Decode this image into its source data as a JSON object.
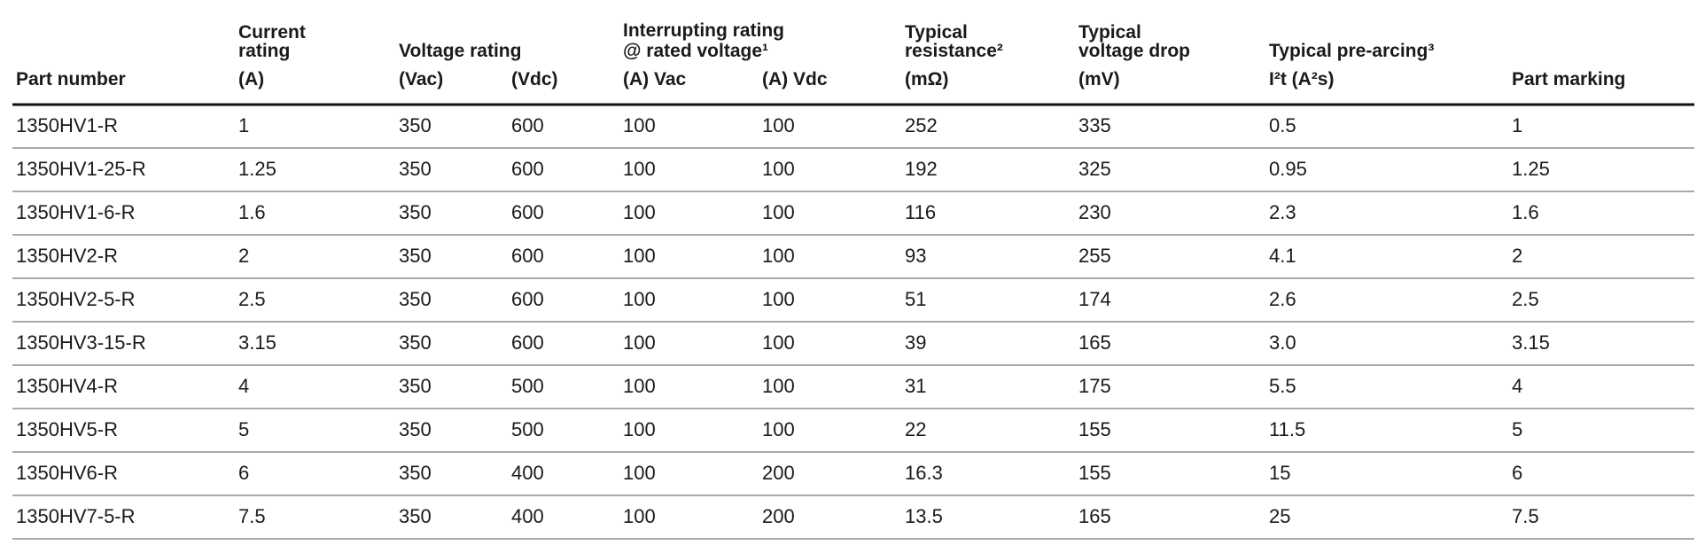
{
  "table": {
    "groups": [
      [
        "Voltage rating"
      ],
      [
        "Interrupting rating",
        "@ rated voltage¹"
      ]
    ],
    "columns": [
      [
        "Part number"
      ],
      [
        "Current",
        "rating",
        "(A)"
      ],
      [
        "(Vac)"
      ],
      [
        "(Vdc)"
      ],
      [
        "(A) Vac"
      ],
      [
        "(A) Vdc"
      ],
      [
        "Typical",
        "resistance²",
        "(mΩ)"
      ],
      [
        "Typical",
        "voltage drop",
        "(mV)"
      ],
      [
        "Typical pre-arcing³",
        "I²t (A²s)"
      ],
      [
        "Part marking"
      ]
    ],
    "rows": [
      [
        "1350HV1-R",
        "1",
        "350",
        "600",
        "100",
        "100",
        "252",
        "335",
        "0.5",
        "1"
      ],
      [
        "1350HV1-25-R",
        "1.25",
        "350",
        "600",
        "100",
        "100",
        "192",
        "325",
        "0.95",
        "1.25"
      ],
      [
        "1350HV1-6-R",
        "1.6",
        "350",
        "600",
        "100",
        "100",
        "116",
        "230",
        "2.3",
        "1.6"
      ],
      [
        "1350HV2-R",
        "2",
        "350",
        "600",
        "100",
        "100",
        "93",
        "255",
        "4.1",
        "2"
      ],
      [
        "1350HV2-5-R",
        "2.5",
        "350",
        "600",
        "100",
        "100",
        "51",
        "174",
        "2.6",
        "2.5"
      ],
      [
        "1350HV3-15-R",
        "3.15",
        "350",
        "600",
        "100",
        "100",
        "39",
        "165",
        "3.0",
        "3.15"
      ],
      [
        "1350HV4-R",
        "4",
        "350",
        "500",
        "100",
        "100",
        "31",
        "175",
        "5.5",
        "4"
      ],
      [
        "1350HV5-R",
        "5",
        "350",
        "500",
        "100",
        "100",
        "22",
        "155",
        "11.5",
        "5"
      ],
      [
        "1350HV6-R",
        "6",
        "350",
        "400",
        "100",
        "200",
        "16.3",
        "155",
        "15",
        "6"
      ],
      [
        "1350HV7-5-R",
        "7.5",
        "350",
        "400",
        "100",
        "200",
        "13.5",
        "165",
        "25",
        "7.5"
      ]
    ]
  }
}
